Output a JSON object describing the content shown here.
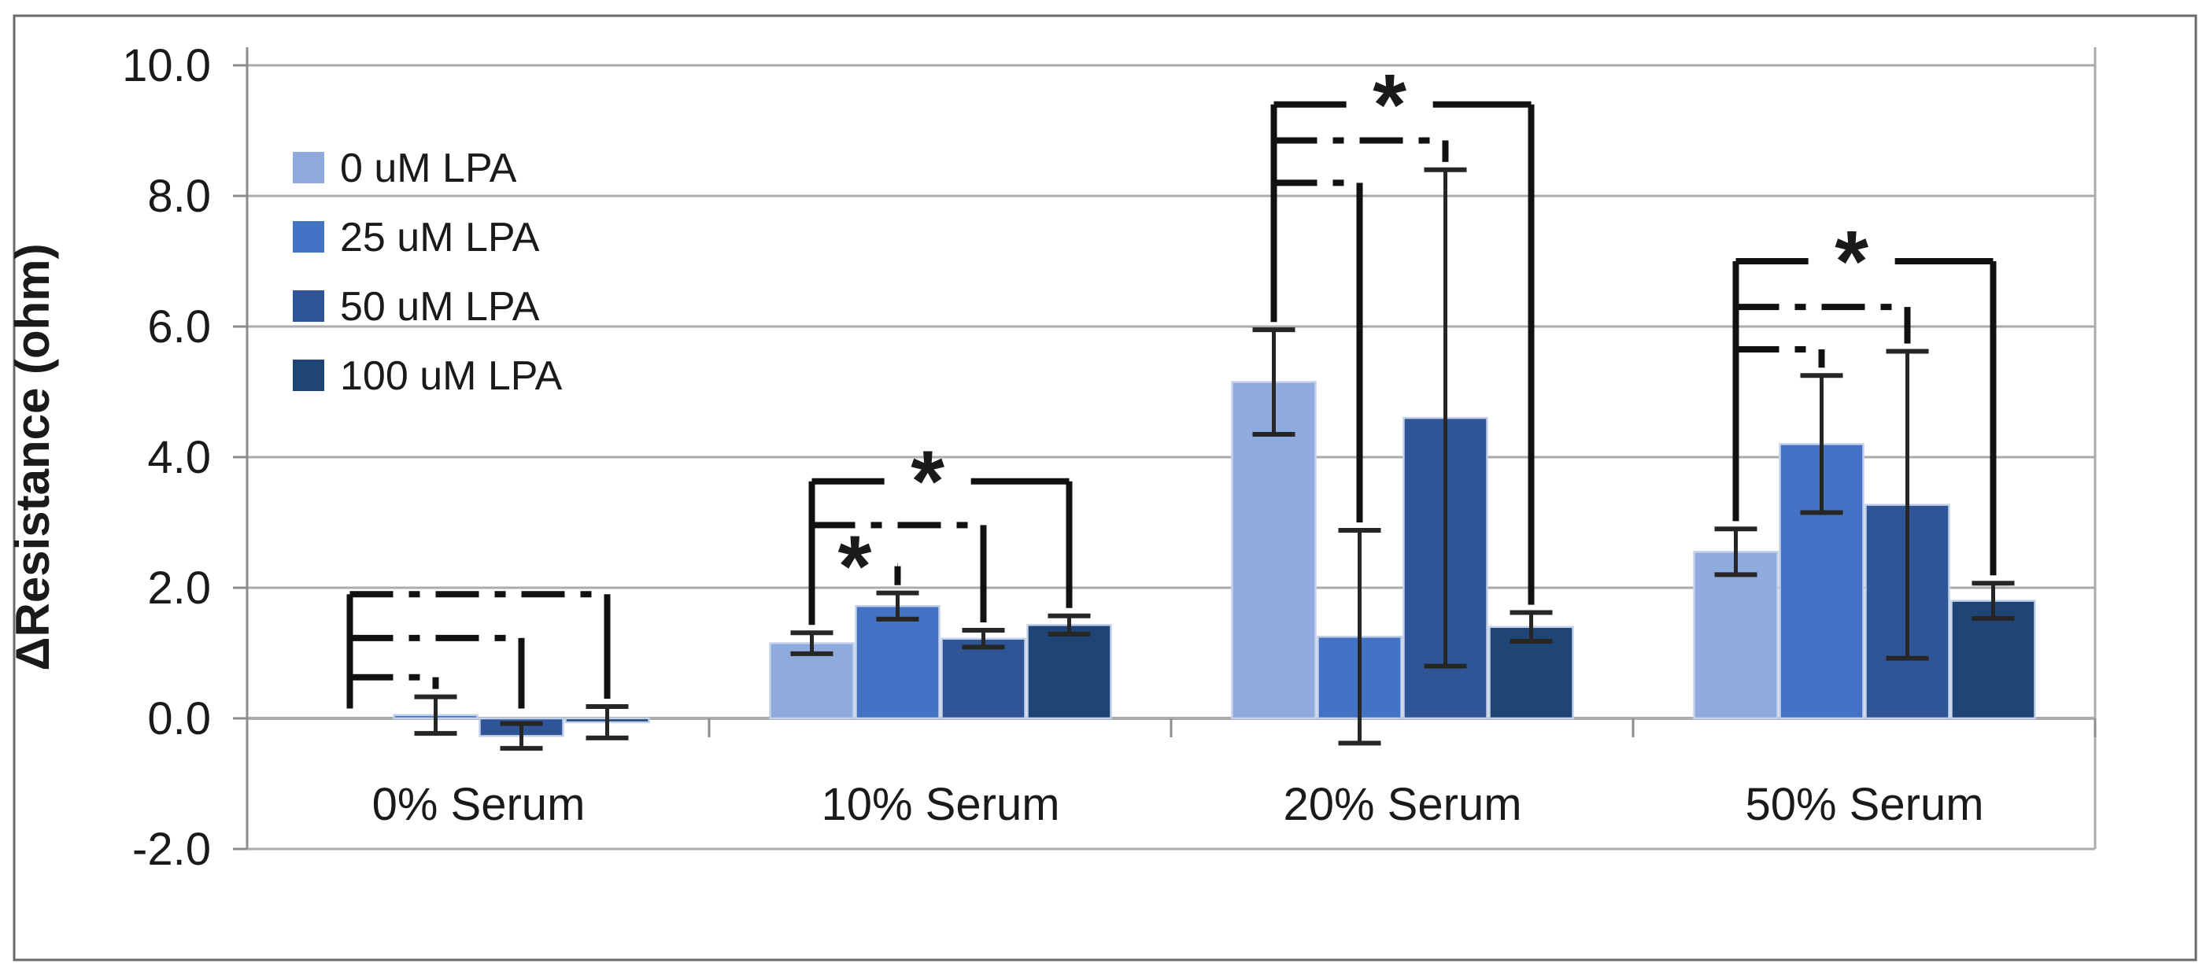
{
  "figure": {
    "kind": "clustered-bar-chart-with-error-bars",
    "background": "#ffffff",
    "frame_color": "#6a6a6a",
    "gridline_color": "#ABABAB",
    "axis_color": "#8c8c8c",
    "error_bar_color": "#262626",
    "bracket_color": "#111111",
    "bar_edge_color": "#C3D1E9"
  },
  "chart_data": {
    "type": "bar",
    "title": "",
    "xlabel": "",
    "ylabel": "ΔResistance (ohm)",
    "categories": [
      "0% Serum",
      "10% Serum",
      "20% Serum",
      "50% Serum"
    ],
    "series": [
      {
        "name": "0 uM LPA",
        "color": "#8FAADC",
        "values": [
          0.0,
          1.15,
          5.15,
          2.55
        ],
        "errors": [
          null,
          0.16,
          0.8,
          0.35
        ]
      },
      {
        "name": "25 uM LPA",
        "color": "#4472C4",
        "values": [
          0.05,
          1.72,
          1.25,
          4.2
        ],
        "errors": [
          0.28,
          0.2,
          1.63,
          1.05
        ]
      },
      {
        "name": "50 uM LPA",
        "color": "#2F5597",
        "values": [
          -0.27,
          1.22,
          4.6,
          3.27
        ],
        "errors": [
          0.19,
          0.13,
          3.8,
          2.35
        ]
      },
      {
        "name": "100 uM LPA",
        "color": "#1F4577",
        "values": [
          -0.06,
          1.43,
          1.4,
          1.8
        ],
        "errors": [
          0.24,
          0.14,
          0.22,
          0.27
        ]
      }
    ],
    "ylim": [
      -2.0,
      10.0
    ],
    "yticks": [
      10.0,
      8.0,
      6.0,
      4.0,
      2.0,
      0.0,
      -2.0
    ],
    "ytick_labels": [
      "10.0",
      "8.0",
      "6.0",
      "4.0",
      "2.0",
      "0.0",
      "-2.0"
    ],
    "grid": true,
    "legend_position": "upper-left-inside",
    "significance_brackets": [
      {
        "group": 0,
        "items": [
          {
            "target_series": 1,
            "level": 0.63,
            "star": false,
            "solid": false
          },
          {
            "target_series": 2,
            "level": 1.23,
            "star": false,
            "solid": false
          },
          {
            "target_series": 3,
            "level": 1.9,
            "star": false,
            "solid": false
          }
        ]
      },
      {
        "group": 1,
        "items": [
          {
            "target_series": 1,
            "level": 2.33,
            "star": true,
            "solid": false
          },
          {
            "target_series": 2,
            "level": 2.96,
            "star": false,
            "solid": false
          },
          {
            "target_series": 3,
            "level": 3.63,
            "star": true,
            "solid": true
          }
        ]
      },
      {
        "group": 2,
        "items": [
          {
            "target_series": 1,
            "level": 8.2,
            "star": false,
            "solid": false
          },
          {
            "target_series": 2,
            "level": 8.85,
            "star": false,
            "solid": false
          },
          {
            "target_series": 3,
            "level": 9.4,
            "star": true,
            "solid": true
          }
        ]
      },
      {
        "group": 3,
        "items": [
          {
            "target_series": 1,
            "level": 5.65,
            "star": false,
            "solid": false
          },
          {
            "target_series": 2,
            "level": 6.3,
            "star": false,
            "solid": false
          },
          {
            "target_series": 3,
            "level": 7.0,
            "star": true,
            "solid": true
          }
        ]
      }
    ],
    "annotations": {
      "star_symbol": "*",
      "star_meaning_shown": false
    }
  }
}
